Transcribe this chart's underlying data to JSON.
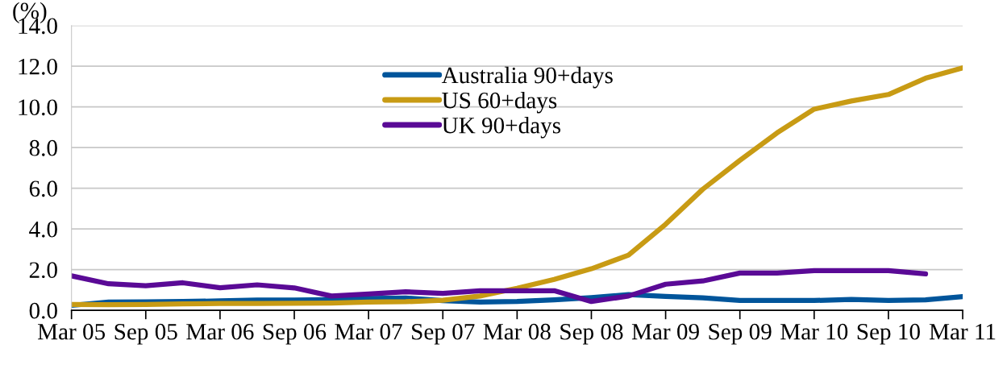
{
  "chart_data": {
    "type": "line",
    "ylabel": "(%)",
    "categories": [
      "Mar 05",
      null,
      "Sep 05",
      null,
      "Mar 06",
      null,
      "Sep 06",
      null,
      "Mar 07",
      null,
      "Sep 07",
      null,
      "Mar 08",
      null,
      "Sep 08",
      null,
      "Mar 09",
      null,
      "Sep 09",
      null,
      "Mar 10",
      null,
      "Sep 10",
      null,
      "Mar 11"
    ],
    "series": [
      {
        "name": "Australia 90+days",
        "color": "#00559b",
        "values": [
          0.24,
          0.4,
          0.41,
          0.43,
          0.46,
          0.5,
          0.5,
          0.52,
          0.58,
          0.6,
          0.47,
          0.4,
          0.43,
          0.51,
          0.62,
          0.77,
          0.68,
          0.61,
          0.48,
          0.48,
          0.48,
          0.53,
          0.48,
          0.51,
          0.67
        ]
      },
      {
        "name": "US 60+days",
        "color": "#c89b14",
        "values": [
          0.28,
          0.27,
          0.28,
          0.31,
          0.33,
          0.33,
          0.34,
          0.35,
          0.4,
          0.42,
          0.49,
          0.7,
          1.08,
          1.52,
          2.04,
          2.71,
          4.23,
          5.95,
          7.37,
          8.72,
          9.89,
          10.29,
          10.61,
          11.41,
          11.92
        ]
      },
      {
        "name": "UK 90+days",
        "color": "#5a0a96",
        "values": [
          1.69,
          1.3,
          1.21,
          1.35,
          1.11,
          1.25,
          1.1,
          0.7,
          0.8,
          0.91,
          0.83,
          0.96,
          0.96,
          0.96,
          0.43,
          0.7,
          1.28,
          1.44,
          1.83,
          1.83,
          1.95,
          1.95,
          1.95,
          1.79,
          null
        ]
      }
    ],
    "ylim": [
      0,
      14
    ],
    "yticks": [
      {
        "value": 0,
        "label": "0.0"
      },
      {
        "value": 2,
        "label": "2.0"
      },
      {
        "value": 4,
        "label": "4.0"
      },
      {
        "value": 6,
        "label": "6.0"
      },
      {
        "value": 8,
        "label": "8.0"
      },
      {
        "value": 10,
        "label": "10.0"
      },
      {
        "value": 12,
        "label": "12.0"
      },
      {
        "value": 14,
        "label": "14.0"
      }
    ],
    "grid": "y",
    "legend": "top",
    "line_style": "solid",
    "marker": "none"
  }
}
